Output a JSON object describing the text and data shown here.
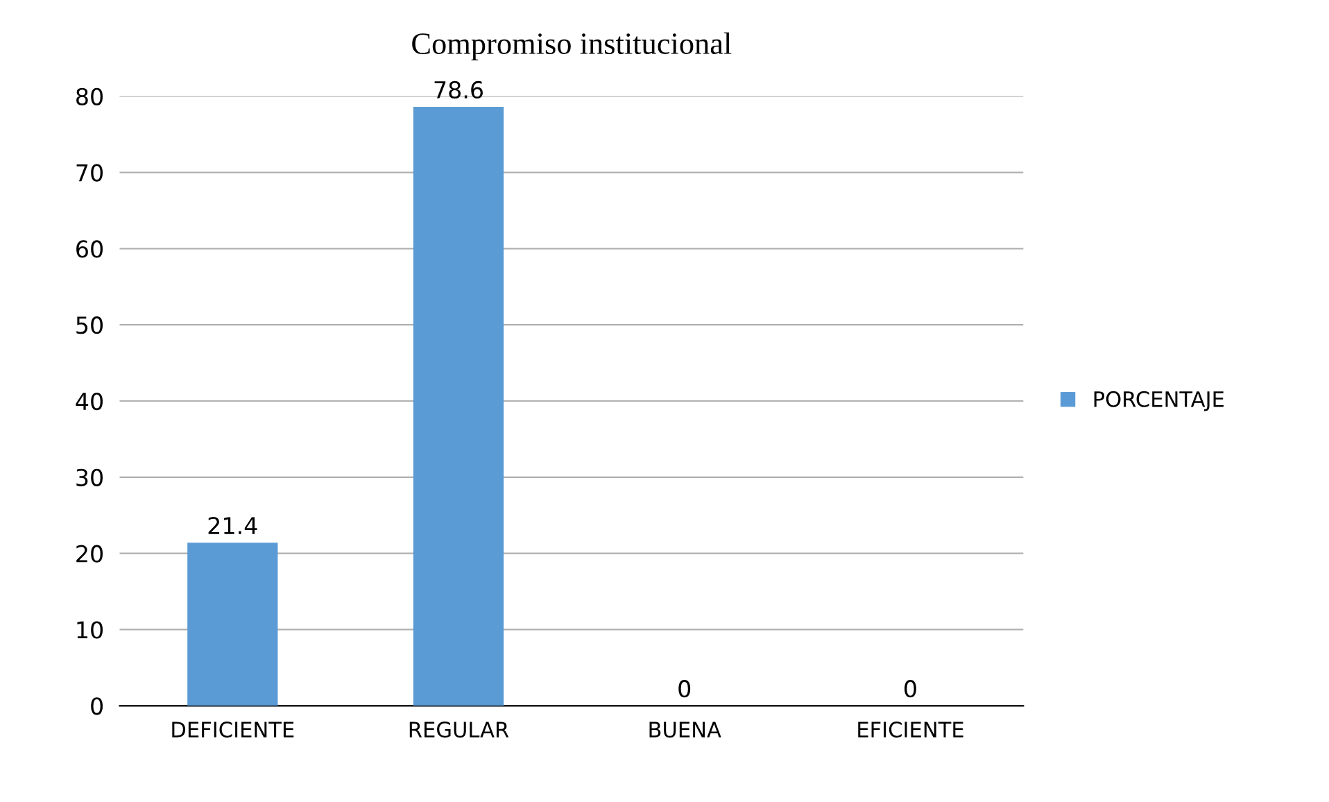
{
  "chart_data": {
    "type": "bar",
    "title": "Compromiso institucional",
    "categories": [
      "DEFICIENTE",
      "REGULAR",
      "BUENA",
      "EFICIENTE"
    ],
    "series": [
      {
        "name": "PORCENTAJE",
        "color": "#5b9bd5",
        "values": [
          21.4,
          78.6,
          0,
          0
        ]
      }
    ],
    "ylim": [
      0,
      80
    ],
    "yticks": [
      0,
      10,
      20,
      30,
      40,
      50,
      60,
      70,
      80
    ],
    "grid": "y",
    "legend": "right",
    "data_labels": true
  }
}
